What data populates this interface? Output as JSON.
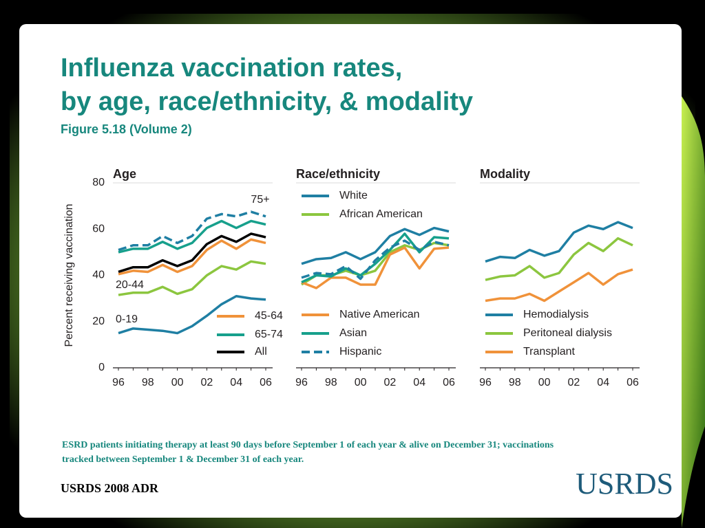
{
  "slide": {
    "title_line1": "Influenza vaccination rates,",
    "title_line2": "by age, race/ethnicity, & modality",
    "subtitle": "Figure 5.18 (Volume 2)",
    "note_line1": "ESRD patients initiating therapy at least 90 days before September 1 of each year & alive on December 31; vaccinations",
    "note_line2": "tracked between September 1 & December 31 of each year.",
    "footer": "USRDS 2008 ADR",
    "logo": "USRDS"
  },
  "chart_data": [
    {
      "type": "line",
      "title": "Age",
      "ylabel": "Percent receiving vaccination",
      "categories": [
        "96",
        null,
        "98",
        null,
        "00",
        null,
        "02",
        null,
        "04",
        null,
        "06"
      ],
      "ylim": [
        0,
        80
      ],
      "yticks": [
        0,
        20,
        40,
        60,
        80
      ],
      "series": [
        {
          "name": "75+",
          "color": "#1f7fa3",
          "dash": true,
          "values": [
            51,
            53,
            53,
            57,
            54,
            57,
            64.5,
            66.5,
            65.5,
            67.5,
            65.5
          ]
        },
        {
          "name": "65-74",
          "color": "#17a08c",
          "values": [
            50,
            51.5,
            51.5,
            54.5,
            51.5,
            54,
            60.5,
            63.5,
            60.5,
            63.5,
            62
          ]
        },
        {
          "name": "All",
          "color": "#000000",
          "values": [
            41.5,
            43.5,
            43.5,
            46.5,
            44,
            46.5,
            53.5,
            57,
            54.5,
            58,
            56.5
          ]
        },
        {
          "name": "45-64",
          "color": "#f0923a",
          "values": [
            40.5,
            42,
            41.5,
            44.5,
            41.5,
            44,
            51,
            55,
            51.5,
            55.5,
            54
          ]
        },
        {
          "name": "20-44",
          "color": "#8cc63f",
          "values": [
            31.5,
            32.5,
            32.5,
            35,
            32,
            34,
            40,
            44,
            42.5,
            46,
            45
          ]
        },
        {
          "name": "0-19",
          "color": "#1f7fa3",
          "values": [
            15,
            17,
            16.5,
            16,
            15,
            18,
            22.5,
            27.5,
            31,
            30,
            29.5
          ]
        }
      ]
    },
    {
      "type": "line",
      "title": "Race/ethnicity",
      "categories": [
        "96",
        null,
        "98",
        null,
        "00",
        null,
        "02",
        null,
        "04",
        null,
        "06"
      ],
      "ylim": [
        0,
        80
      ],
      "series": [
        {
          "name": "White",
          "color": "#1f7fa3",
          "values": [
            45,
            47,
            47.5,
            50,
            47,
            50,
            57,
            60,
            57.5,
            60.5,
            59
          ]
        },
        {
          "name": "African American",
          "color": "#8cc63f",
          "values": [
            36,
            40,
            40,
            42,
            40,
            42,
            50,
            53,
            51,
            54,
            53
          ]
        },
        {
          "name": "Native American",
          "color": "#f0923a",
          "values": [
            37,
            34.5,
            39,
            39,
            36,
            36,
            49,
            52,
            43,
            51.5,
            52
          ]
        },
        {
          "name": "Asian",
          "color": "#17a08c",
          "values": [
            37,
            40,
            39.5,
            43,
            40,
            45,
            51,
            58,
            50,
            56.5,
            56
          ]
        },
        {
          "name": "Hispanic",
          "color": "#1f7fa3",
          "dash": true,
          "values": [
            39,
            41,
            40.5,
            44,
            38.5,
            46.5,
            52,
            55,
            51,
            54.5,
            53
          ]
        }
      ]
    },
    {
      "type": "line",
      "title": "Modality",
      "categories": [
        "96",
        null,
        "98",
        null,
        "00",
        null,
        "02",
        null,
        "04",
        null,
        "06"
      ],
      "ylim": [
        0,
        80
      ],
      "series": [
        {
          "name": "Hemodialysis",
          "color": "#1f7fa3",
          "values": [
            46,
            48,
            47.5,
            51,
            48.5,
            50.5,
            58.5,
            61.5,
            60,
            63,
            60.5
          ]
        },
        {
          "name": "Peritoneal dialysis",
          "color": "#8cc63f",
          "values": [
            38,
            39.5,
            40,
            44,
            39,
            41,
            49,
            54,
            50.5,
            56,
            53
          ]
        },
        {
          "name": "Transplant",
          "color": "#f0923a",
          "values": [
            29,
            30,
            30,
            32,
            29,
            33,
            37,
            41,
            36,
            40.5,
            42.5
          ]
        }
      ]
    }
  ]
}
